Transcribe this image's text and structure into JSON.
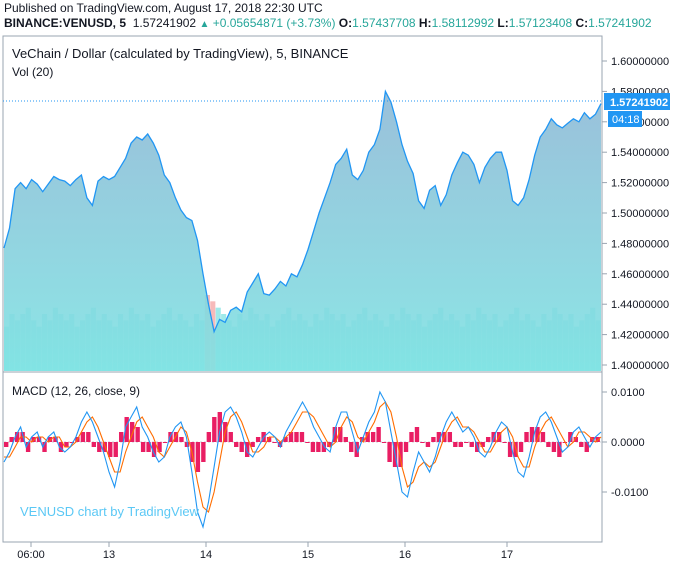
{
  "published": "Published on TradingView.com, August 17, 2018 22:30 UTC",
  "header": {
    "symbol": "BINANCE:VENUSD, 5",
    "last": "1.57241902",
    "change": "+0.05654871 (+3.73%)",
    "o_label": "O:",
    "o": "1.57437708",
    "h_label": "H:",
    "h": "1.58112992",
    "l_label": "L:",
    "l": "1.57123408",
    "c_label": "C:",
    "c": "1.57241902"
  },
  "price_pane": {
    "title": "VeChain / Dollar (calculated by TradingView), 5, BINANCE",
    "vol_label": "Vol (20)",
    "price_ticks": [
      "1.60000000",
      "1.58000000",
      "1.56000000",
      "1.54000000",
      "1.52000000",
      "1.50000000",
      "1.48000000",
      "1.46000000",
      "1.44000000",
      "1.42000000",
      "1.40000000"
    ],
    "last_price_tag": "1.57241902",
    "countdown_tag": "04:18"
  },
  "macd_pane": {
    "title": "MACD (12, 26, close, 9)",
    "ticks": [
      "0.0100",
      "0.0000",
      "-0.0100"
    ],
    "watermark": "VENUSD chart by TradingView"
  },
  "x_ticks": [
    "06:00",
    "13",
    "14",
    "15",
    "16",
    "17"
  ],
  "colors": {
    "price_line": "#2196f3",
    "area_top": "#8fb9d6",
    "area_bottom": "#7fe3e3",
    "volume": "#7fe3e3",
    "volume_down": "#f4a3a3",
    "macd_line": "#2196f3",
    "signal_line": "#ff6d00",
    "hist": "#e91e63",
    "last_price_bg": "#2196f3"
  },
  "chart_data": [
    {
      "type": "area",
      "title": "VeChain / Dollar (calculated by TradingView), 5, BINANCE",
      "ylim": [
        1.39,
        1.615
      ],
      "x_labels": [
        "06:00",
        "13",
        "14",
        "15",
        "16",
        "17"
      ],
      "series": [
        {
          "name": "VeChain / Dollar",
          "values": [
            1.477,
            1.49,
            1.516,
            1.52,
            1.516,
            1.522,
            1.519,
            1.514,
            1.519,
            1.524,
            1.522,
            1.521,
            1.518,
            1.522,
            1.525,
            1.51,
            1.505,
            1.521,
            1.524,
            1.522,
            1.524,
            1.53,
            1.536,
            1.546,
            1.55,
            1.548,
            1.552,
            1.546,
            1.538,
            1.525,
            1.52,
            1.51,
            1.502,
            1.497,
            1.495,
            1.482,
            1.46,
            1.44,
            1.422,
            1.43,
            1.428,
            1.436,
            1.438,
            1.435,
            1.448,
            1.454,
            1.46,
            1.447,
            1.446,
            1.45,
            1.455,
            1.452,
            1.46,
            1.458,
            1.466,
            1.476,
            1.488,
            1.5,
            1.51,
            1.52,
            1.532,
            1.536,
            1.542,
            1.525,
            1.522,
            1.528,
            1.54,
            1.545,
            1.555,
            1.58,
            1.573,
            1.56,
            1.545,
            1.534,
            1.526,
            1.508,
            1.503,
            1.515,
            1.518,
            1.505,
            1.512,
            1.525,
            1.533,
            1.54,
            1.538,
            1.532,
            1.52,
            1.53,
            1.536,
            1.54,
            1.54,
            1.528,
            1.508,
            1.505,
            1.51,
            1.522,
            1.538,
            1.55,
            1.555,
            1.562,
            1.558,
            1.556,
            1.559,
            1.562,
            1.56,
            1.566,
            1.562,
            1.565,
            1.572
          ]
        }
      ]
    },
    {
      "type": "bar",
      "title": "Vol (20)",
      "series": [
        {
          "name": "Vol",
          "values": [
            7,
            9,
            8,
            9,
            10,
            8,
            7,
            9,
            8,
            10,
            9,
            8,
            9,
            7,
            8,
            9,
            10,
            8,
            9,
            8,
            7,
            9,
            8,
            10,
            9,
            8,
            9,
            7,
            8,
            9,
            10,
            8,
            9,
            8,
            7,
            9,
            8,
            12,
            11,
            10,
            9,
            8,
            7,
            9,
            8,
            10,
            9,
            8,
            9,
            7,
            8,
            9,
            10,
            8,
            9,
            8,
            7,
            9,
            8,
            10,
            9,
            8,
            9,
            7,
            8,
            9,
            10,
            8,
            9,
            8,
            7,
            9,
            8,
            10,
            9,
            8,
            9,
            7,
            8,
            9,
            10,
            8,
            9,
            8,
            7,
            9,
            8,
            10,
            9,
            8,
            9,
            7,
            8,
            9,
            10,
            8,
            9,
            8,
            7,
            9,
            8,
            10,
            9,
            8,
            9,
            7,
            8,
            9,
            10,
            8
          ]
        }
      ]
    },
    {
      "type": "line",
      "title": "MACD (12, 26, close, 9)",
      "ylim": [
        -0.018,
        0.012
      ],
      "series": [
        {
          "name": "MACD",
          "values": [
            -0.004,
            -0.002,
            0.001,
            0.003,
            -0.001,
            0.001,
            0.002,
            -0.001,
            0.001,
            0.002,
            -0.001,
            -0.002,
            -0.001,
            0.001,
            0.004,
            0.006,
            0.004,
            0.001,
            -0.002,
            -0.006,
            -0.009,
            -0.004,
            0.003,
            0.005,
            0.007,
            0.003,
            0.001,
            -0.002,
            -0.004,
            -0.003,
            0.001,
            0.003,
            0.004,
            0.001,
            -0.006,
            -0.014,
            -0.017,
            -0.012,
            -0.005,
            0.002,
            0.006,
            0.007,
            0.005,
            0.002,
            -0.002,
            -0.003,
            -0.001,
            0.001,
            0.002,
            0.001,
            -0.001,
            0.002,
            0.004,
            0.006,
            0.008,
            0.006,
            0.003,
            0.001,
            -0.001,
            -0.002,
            0.003,
            0.006,
            0.006,
            0.002,
            -0.002,
            0.001,
            0.004,
            0.006,
            0.01,
            0.008,
            0.002,
            -0.004,
            -0.01,
            -0.011,
            -0.006,
            -0.002,
            -0.004,
            -0.006,
            -0.003,
            0.001,
            0.004,
            0.006,
            0.004,
            0.002,
            0.003,
            0.001,
            -0.002,
            -0.003,
            -0.001,
            0.002,
            0.004,
            0.003,
            -0.002,
            -0.006,
            -0.007,
            -0.003,
            0.002,
            0.005,
            0.006,
            0.004,
            0.001,
            -0.002,
            -0.001,
            0.002,
            0.003,
            0.001,
            -0.001,
            0.001,
            0.002
          ]
        },
        {
          "name": "Signal",
          "values": [
            -0.003,
            -0.003,
            -0.001,
            0.001,
            0.001,
            0.0,
            0.001,
            0.001,
            0.0,
            0.001,
            0.001,
            -0.001,
            -0.001,
            0.0,
            0.002,
            0.004,
            0.005,
            0.003,
            0.0,
            -0.003,
            -0.006,
            -0.006,
            -0.002,
            0.001,
            0.004,
            0.005,
            0.003,
            0.001,
            -0.002,
            -0.003,
            -0.001,
            0.001,
            0.003,
            0.002,
            -0.002,
            -0.008,
            -0.013,
            -0.014,
            -0.01,
            -0.004,
            0.002,
            0.005,
            0.006,
            0.004,
            0.001,
            -0.002,
            -0.002,
            -0.001,
            0.001,
            0.001,
            0.0,
            0.001,
            0.002,
            0.004,
            0.006,
            0.006,
            0.005,
            0.003,
            0.001,
            -0.001,
            0.0,
            0.003,
            0.005,
            0.004,
            0.001,
            0.0,
            0.002,
            0.004,
            0.007,
            0.008,
            0.006,
            0.001,
            -0.005,
            -0.009,
            -0.008,
            -0.005,
            -0.004,
            -0.005,
            -0.004,
            -0.001,
            0.002,
            0.004,
            0.005,
            0.003,
            0.003,
            0.002,
            0.0,
            -0.002,
            -0.002,
            0.0,
            0.002,
            0.003,
            0.001,
            -0.003,
            -0.005,
            -0.005,
            -0.001,
            0.002,
            0.004,
            0.005,
            0.003,
            0.001,
            -0.001,
            0.0,
            0.002,
            0.002,
            0.001,
            0.0,
            0.001
          ]
        }
      ],
      "histogram": "MACD - Signal"
    }
  ]
}
